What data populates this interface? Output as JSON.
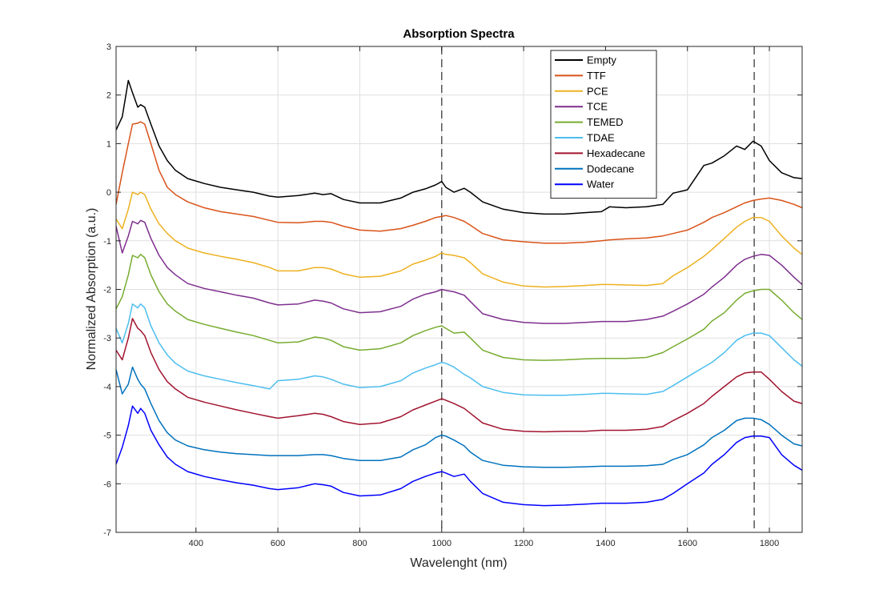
{
  "chart_data": {
    "type": "line",
    "title": "Absorption Spectra",
    "xlabel": "Wavelenght (nm)",
    "ylabel": "Normalized Absorption (a.u.)",
    "xlim": [
      205,
      1880
    ],
    "ylim": [
      -7,
      3
    ],
    "xticks": [
      400,
      600,
      800,
      1000,
      1200,
      1400,
      1600,
      1800
    ],
    "yticks": [
      -7,
      -6,
      -5,
      -4,
      -3,
      -2,
      -1,
      0,
      1,
      2,
      3
    ],
    "grid": true,
    "legend_position": "top-right",
    "reference_lines": [
      1000,
      1763
    ],
    "x": [
      205,
      220,
      235,
      245,
      258,
      265,
      275,
      290,
      310,
      330,
      350,
      380,
      420,
      460,
      500,
      540,
      580,
      600,
      650,
      690,
      710,
      730,
      760,
      800,
      850,
      900,
      930,
      960,
      985,
      1000,
      1010,
      1030,
      1055,
      1070,
      1100,
      1150,
      1200,
      1250,
      1300,
      1350,
      1390,
      1410,
      1450,
      1500,
      1540,
      1565,
      1600,
      1640,
      1660,
      1690,
      1720,
      1740,
      1760,
      1780,
      1800,
      1830,
      1860,
      1880
    ],
    "series": [
      {
        "name": "Empty",
        "color": "#000000",
        "values": [
          1.28,
          1.55,
          2.3,
          2.05,
          1.75,
          1.8,
          1.75,
          1.4,
          0.95,
          0.65,
          0.45,
          0.28,
          0.18,
          0.1,
          0.05,
          0.0,
          -0.08,
          -0.1,
          -0.07,
          -0.02,
          -0.05,
          -0.03,
          -0.15,
          -0.22,
          -0.22,
          -0.12,
          0.0,
          0.07,
          0.15,
          0.22,
          0.1,
          0.0,
          0.08,
          0.0,
          -0.2,
          -0.35,
          -0.42,
          -0.45,
          -0.45,
          -0.42,
          -0.4,
          -0.3,
          -0.32,
          -0.3,
          -0.25,
          -0.02,
          0.05,
          0.55,
          0.6,
          0.75,
          0.95,
          0.88,
          1.05,
          0.95,
          0.65,
          0.4,
          0.3,
          0.28
        ]
      },
      {
        "name": "TTF",
        "color": "#D95319",
        "values": [
          -0.25,
          0.4,
          1.0,
          1.4,
          1.42,
          1.45,
          1.4,
          1.0,
          0.45,
          0.1,
          -0.05,
          -0.2,
          -0.32,
          -0.4,
          -0.45,
          -0.5,
          -0.58,
          -0.62,
          -0.63,
          -0.6,
          -0.6,
          -0.62,
          -0.7,
          -0.78,
          -0.8,
          -0.75,
          -0.68,
          -0.6,
          -0.52,
          -0.5,
          -0.48,
          -0.52,
          -0.6,
          -0.68,
          -0.85,
          -0.98,
          -1.02,
          -1.05,
          -1.05,
          -1.03,
          -1.0,
          -0.98,
          -0.96,
          -0.94,
          -0.9,
          -0.85,
          -0.78,
          -0.62,
          -0.52,
          -0.42,
          -0.3,
          -0.22,
          -0.17,
          -0.14,
          -0.12,
          -0.17,
          -0.25,
          -0.32
        ]
      },
      {
        "name": "PCE",
        "color": "#EDB120",
        "values": [
          -0.55,
          -0.75,
          -0.35,
          0.0,
          -0.05,
          0.0,
          -0.05,
          -0.35,
          -0.65,
          -0.85,
          -1.0,
          -1.15,
          -1.25,
          -1.32,
          -1.38,
          -1.45,
          -1.55,
          -1.62,
          -1.62,
          -1.55,
          -1.55,
          -1.58,
          -1.68,
          -1.75,
          -1.73,
          -1.62,
          -1.48,
          -1.4,
          -1.32,
          -1.25,
          -1.28,
          -1.3,
          -1.35,
          -1.45,
          -1.68,
          -1.85,
          -1.93,
          -1.95,
          -1.94,
          -1.92,
          -1.9,
          -1.9,
          -1.91,
          -1.92,
          -1.88,
          -1.72,
          -1.55,
          -1.32,
          -1.18,
          -0.95,
          -0.72,
          -0.6,
          -0.52,
          -0.52,
          -0.6,
          -0.9,
          -1.15,
          -1.28
        ]
      },
      {
        "name": "TCE",
        "color": "#7E2F8E",
        "values": [
          -0.7,
          -1.25,
          -0.9,
          -0.6,
          -0.65,
          -0.58,
          -0.62,
          -0.95,
          -1.3,
          -1.55,
          -1.7,
          -1.88,
          -1.98,
          -2.05,
          -2.12,
          -2.18,
          -2.28,
          -2.32,
          -2.3,
          -2.22,
          -2.24,
          -2.28,
          -2.4,
          -2.48,
          -2.46,
          -2.35,
          -2.2,
          -2.1,
          -2.05,
          -2.0,
          -2.02,
          -2.05,
          -2.12,
          -2.25,
          -2.5,
          -2.62,
          -2.68,
          -2.7,
          -2.7,
          -2.68,
          -2.66,
          -2.66,
          -2.66,
          -2.62,
          -2.55,
          -2.45,
          -2.3,
          -2.1,
          -1.95,
          -1.75,
          -1.5,
          -1.38,
          -1.32,
          -1.28,
          -1.3,
          -1.5,
          -1.75,
          -1.9
        ]
      },
      {
        "name": "TEMED",
        "color": "#77AC30",
        "values": [
          -2.4,
          -2.15,
          -1.7,
          -1.3,
          -1.35,
          -1.28,
          -1.35,
          -1.7,
          -2.05,
          -2.3,
          -2.45,
          -2.62,
          -2.72,
          -2.8,
          -2.88,
          -2.95,
          -3.05,
          -3.1,
          -3.08,
          -2.98,
          -3.0,
          -3.05,
          -3.18,
          -3.25,
          -3.22,
          -3.1,
          -2.95,
          -2.85,
          -2.78,
          -2.75,
          -2.8,
          -2.9,
          -2.88,
          -3.0,
          -3.25,
          -3.4,
          -3.45,
          -3.46,
          -3.45,
          -3.43,
          -3.42,
          -3.42,
          -3.42,
          -3.4,
          -3.3,
          -3.18,
          -3.02,
          -2.82,
          -2.65,
          -2.48,
          -2.22,
          -2.08,
          -2.03,
          -2.0,
          -2.0,
          -2.22,
          -2.48,
          -2.62
        ]
      },
      {
        "name": "TDAE",
        "color": "#4DBEEE",
        "values": [
          -2.8,
          -3.1,
          -2.7,
          -2.3,
          -2.38,
          -2.3,
          -2.38,
          -2.75,
          -3.1,
          -3.35,
          -3.52,
          -3.68,
          -3.78,
          -3.85,
          -3.92,
          -3.98,
          -4.05,
          -3.88,
          -3.85,
          -3.78,
          -3.8,
          -3.85,
          -3.95,
          -4.02,
          -4.0,
          -3.88,
          -3.72,
          -3.62,
          -3.55,
          -3.5,
          -3.52,
          -3.6,
          -3.75,
          -3.82,
          -4.0,
          -4.12,
          -4.17,
          -4.18,
          -4.18,
          -4.16,
          -4.14,
          -4.14,
          -4.15,
          -4.16,
          -4.1,
          -3.98,
          -3.8,
          -3.6,
          -3.5,
          -3.3,
          -3.05,
          -2.95,
          -2.9,
          -2.9,
          -2.95,
          -3.2,
          -3.45,
          -3.58
        ]
      },
      {
        "name": "Hexadecane",
        "color": "#A2142F",
        "values": [
          -3.25,
          -3.45,
          -3.0,
          -2.6,
          -2.8,
          -2.85,
          -2.95,
          -3.3,
          -3.65,
          -3.9,
          -4.05,
          -4.22,
          -4.32,
          -4.4,
          -4.48,
          -4.55,
          -4.62,
          -4.65,
          -4.6,
          -4.55,
          -4.57,
          -4.62,
          -4.72,
          -4.78,
          -4.75,
          -4.62,
          -4.48,
          -4.38,
          -4.3,
          -4.25,
          -4.28,
          -4.35,
          -4.45,
          -4.55,
          -4.75,
          -4.88,
          -4.92,
          -4.93,
          -4.92,
          -4.92,
          -4.9,
          -4.9,
          -4.9,
          -4.88,
          -4.82,
          -4.7,
          -4.55,
          -4.35,
          -4.2,
          -4.0,
          -3.8,
          -3.72,
          -3.7,
          -3.7,
          -3.85,
          -4.1,
          -4.3,
          -4.35
        ]
      },
      {
        "name": "Dodecane",
        "color": "#0072BD",
        "values": [
          -3.65,
          -4.15,
          -3.95,
          -3.6,
          -3.85,
          -3.95,
          -4.05,
          -4.35,
          -4.7,
          -4.95,
          -5.1,
          -5.22,
          -5.3,
          -5.35,
          -5.38,
          -5.4,
          -5.42,
          -5.42,
          -5.42,
          -5.4,
          -5.4,
          -5.42,
          -5.48,
          -5.52,
          -5.52,
          -5.45,
          -5.3,
          -5.2,
          -5.05,
          -5.0,
          -5.02,
          -5.1,
          -5.22,
          -5.35,
          -5.52,
          -5.62,
          -5.65,
          -5.66,
          -5.66,
          -5.65,
          -5.64,
          -5.64,
          -5.64,
          -5.63,
          -5.6,
          -5.5,
          -5.4,
          -5.2,
          -5.05,
          -4.9,
          -4.7,
          -4.65,
          -4.65,
          -4.68,
          -4.78,
          -5.0,
          -5.18,
          -5.22
        ]
      },
      {
        "name": "Water",
        "color": "#0000FF",
        "values": [
          -5.6,
          -5.25,
          -4.8,
          -4.4,
          -4.55,
          -4.45,
          -4.55,
          -4.9,
          -5.2,
          -5.45,
          -5.6,
          -5.75,
          -5.85,
          -5.92,
          -5.98,
          -6.03,
          -6.1,
          -6.12,
          -6.08,
          -6.0,
          -6.02,
          -6.05,
          -6.18,
          -6.25,
          -6.23,
          -6.1,
          -5.95,
          -5.85,
          -5.78,
          -5.75,
          -5.78,
          -5.85,
          -5.8,
          -5.95,
          -6.2,
          -6.38,
          -6.43,
          -6.45,
          -6.44,
          -6.42,
          -6.4,
          -6.4,
          -6.4,
          -6.38,
          -6.32,
          -6.2,
          -6.0,
          -5.78,
          -5.6,
          -5.4,
          -5.15,
          -5.05,
          -5.02,
          -5.02,
          -5.05,
          -5.4,
          -5.62,
          -5.72
        ]
      }
    ]
  }
}
